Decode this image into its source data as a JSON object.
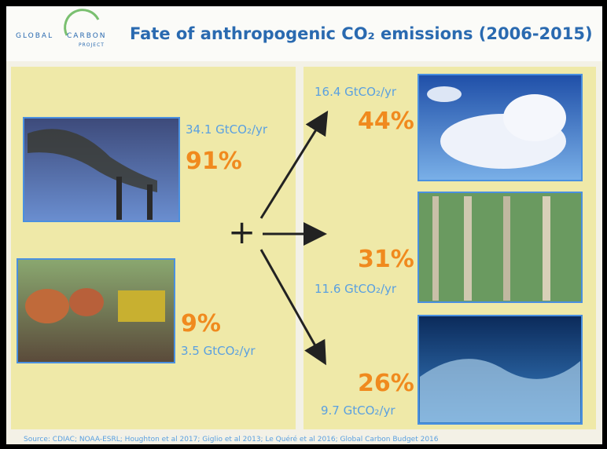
{
  "header": {
    "logo": [
      "GLOBAL",
      "CARBON",
      "PROJECT"
    ],
    "title": "Fate of anthropogenic CO₂ emissions (2006-2015)"
  },
  "sources": [
    {
      "amount": "34.1 GtCO₂/yr",
      "share": "91%"
    },
    {
      "amount": "3.5 GtCO₂/yr",
      "share": "9%"
    }
  ],
  "sinks": [
    {
      "amount": "16.4 GtCO₂/yr",
      "share": "44%"
    },
    {
      "amount": "11.6 GtCO₂/yr",
      "share": "31%"
    },
    {
      "amount": "9.7 GtCO₂/yr",
      "share": "26%"
    }
  ],
  "plus": "+",
  "footer": "Source: CDIAC; NOAA-ESRL; Houghton et al 2017; Giglio et al 2013; Le Quéré et al 2016; Global Carbon Budget 2016"
}
